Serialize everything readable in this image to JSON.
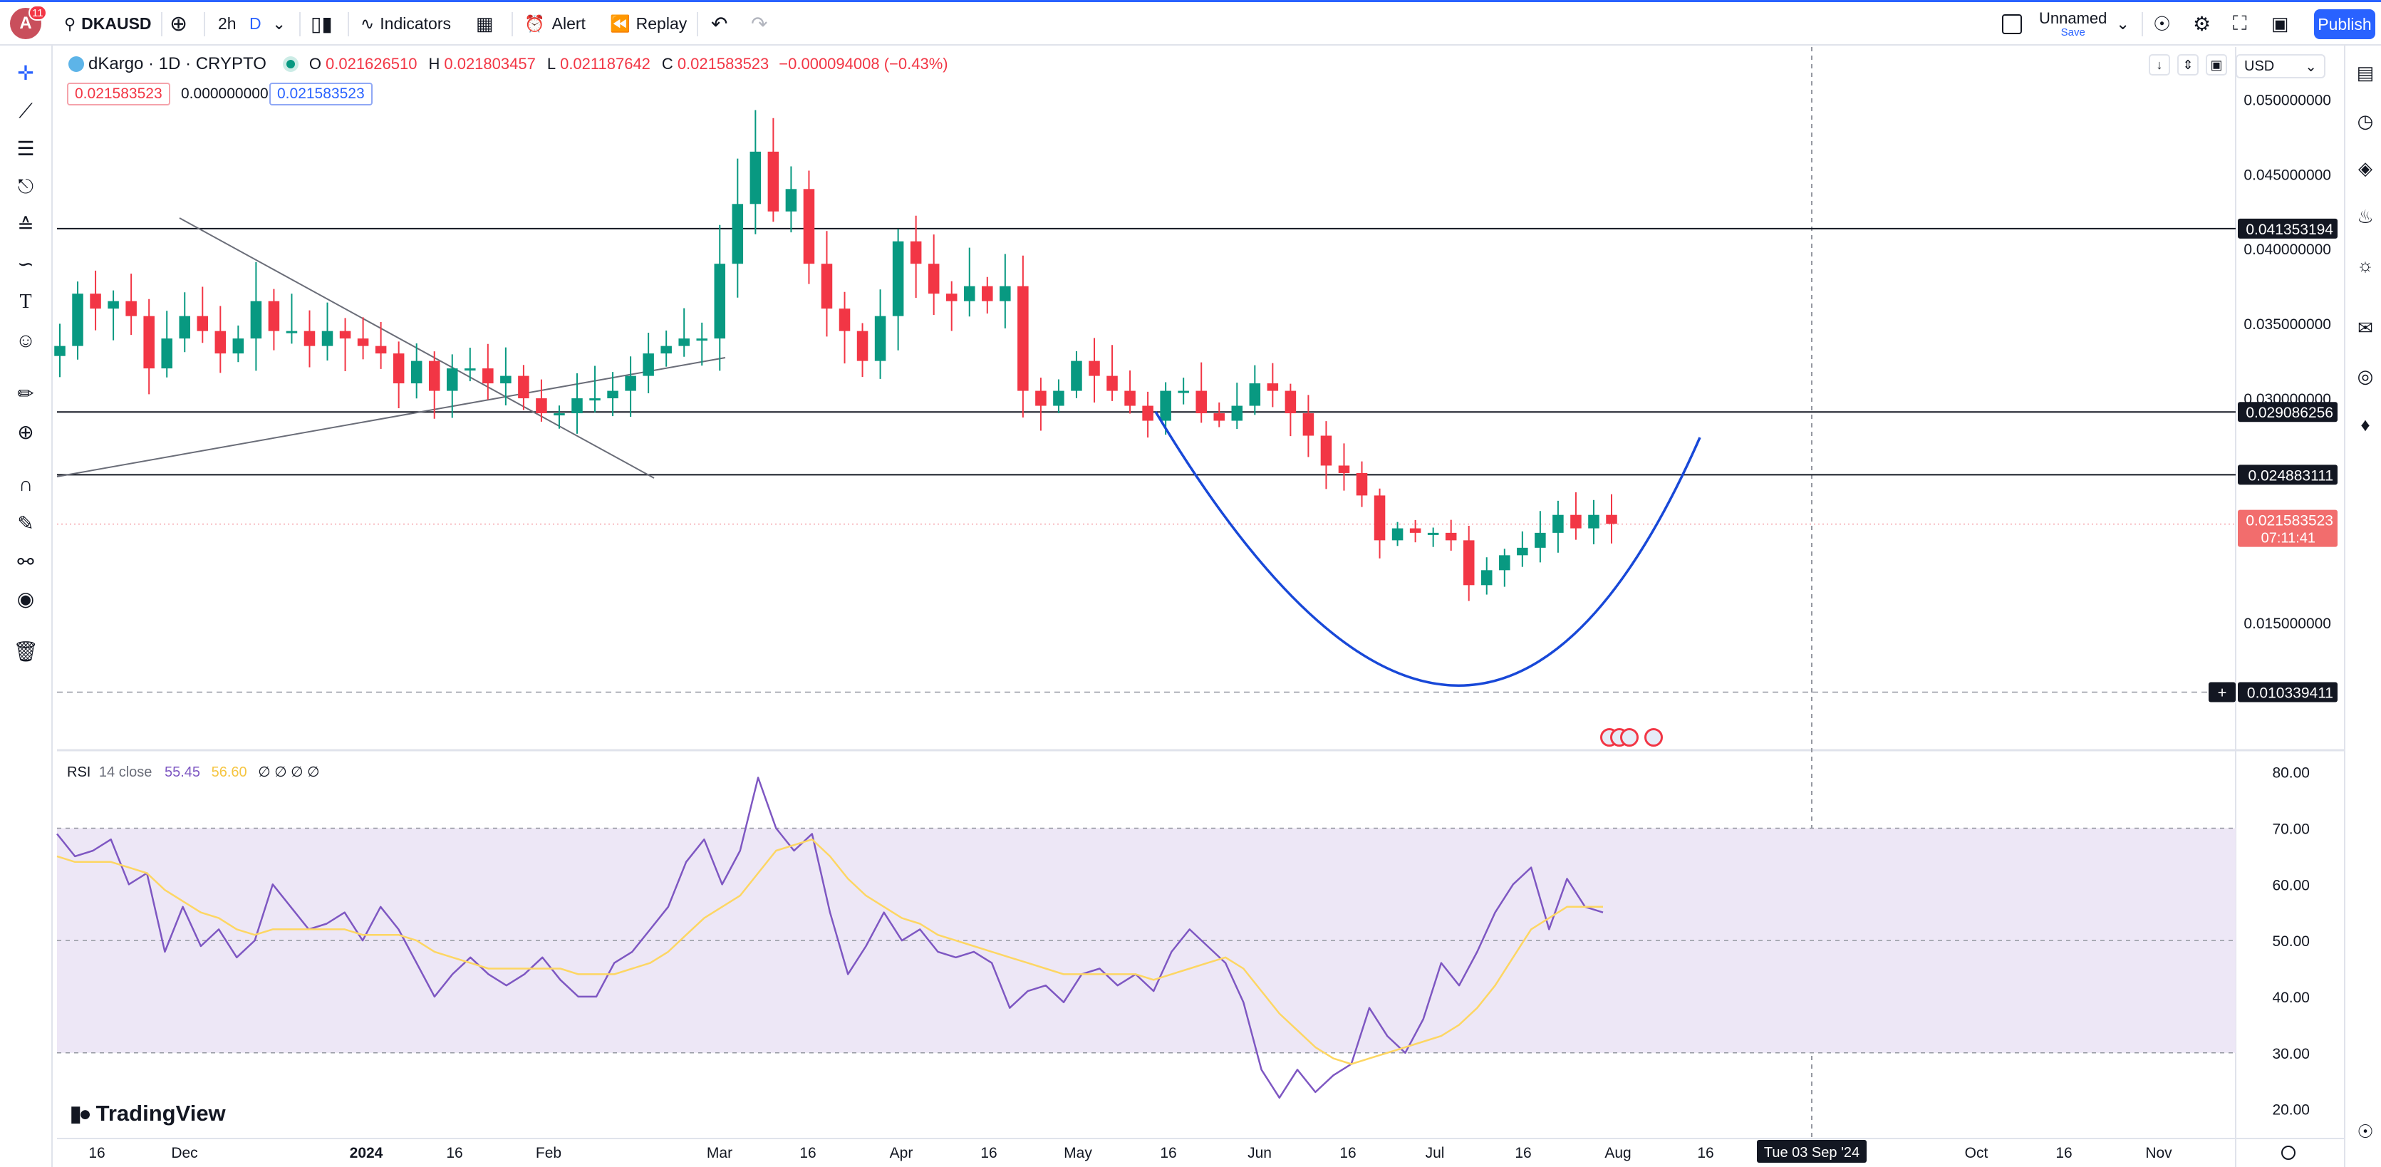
{
  "header": {
    "avatar_letter": "A",
    "notifications": "11",
    "symbol": "DKAUSD",
    "interval": "2h",
    "interval_d": "D",
    "indicators": "Indicators",
    "alert": "Alert",
    "replay": "Replay",
    "layout_name": "Unnamed",
    "layout_save": "Save",
    "publish": "Publish"
  },
  "legend": {
    "title": "dKargo · 1D · CRYPTO",
    "o_key": "O",
    "o_val": "0.021626510",
    "h_key": "H",
    "h_val": "0.021803457",
    "l_key": "L",
    "l_val": "0.021187642",
    "c_key": "C",
    "c_val": "0.021583523",
    "change": "−0.000094008 (−0.43%)",
    "bid": "0.021583523",
    "spread": "0.000000000",
    "ask": "0.021583523"
  },
  "currency": "USD",
  "rsi_legend": {
    "name": "RSI",
    "params": "14 close",
    "rsi": "55.45",
    "ma": "56.60",
    "extra": "∅ ∅ ∅ ∅"
  },
  "brand": "TradingView",
  "crosshair_date": "Tue 03 Sep '24",
  "colors": {
    "up": "#089981",
    "down": "#f23645",
    "curve": "#1848d8",
    "rsi": "#7e57c2",
    "rsi_ma": "#fdd663",
    "band": "#ede7f6",
    "accent": "#2962ff"
  },
  "chart_data": [
    {
      "type": "candlestick",
      "title": "dKargo · 1D · CRYPTO",
      "y_axis": {
        "ticks": [
          "0.050000000",
          "0.045000000",
          "0.040000000",
          "0.035000000",
          "0.030000000",
          "0.015000000"
        ],
        "tick_values": [
          0.05,
          0.045,
          0.04,
          0.035,
          0.03,
          0.015
        ],
        "range": [
          0.0066,
          0.0535
        ]
      },
      "x_axis": {
        "ticks": [
          "16",
          "Dec",
          "2024",
          "16",
          "Feb",
          "Mar",
          "16",
          "Apr",
          "16",
          "May",
          "16",
          "Jun",
          "16",
          "Jul",
          "16",
          "Aug",
          "16",
          "Oct",
          "16",
          "Nov"
        ]
      },
      "horizontal_levels": [
        {
          "label": "0.041353194",
          "value": 0.041353194
        },
        {
          "label": "0.029086256",
          "value": 0.029086256
        },
        {
          "label": "0.024883111",
          "value": 0.024883111
        },
        {
          "label": "0.010339411",
          "value": 0.010339411
        }
      ],
      "last_price": {
        "label": "0.021583523",
        "countdown": "07:11:41",
        "value": 0.021583523
      },
      "ohlc_series": [
        0.0335,
        0.037,
        0.036,
        0.0365,
        0.0355,
        0.032,
        0.034,
        0.0355,
        0.0345,
        0.033,
        0.034,
        0.0365,
        0.0345,
        0.0345,
        0.0335,
        0.0345,
        0.034,
        0.0335,
        0.033,
        0.031,
        0.0325,
        0.0305,
        0.032,
        0.032,
        0.031,
        0.0315,
        0.03,
        0.029,
        0.029,
        0.03,
        0.03,
        0.0305,
        0.0315,
        0.033,
        0.0335,
        0.034,
        0.034,
        0.039,
        0.043,
        0.0465,
        0.0425,
        0.044,
        0.039,
        0.036,
        0.0345,
        0.0325,
        0.0355,
        0.0405,
        0.039,
        0.037,
        0.0365,
        0.0375,
        0.0365,
        0.0375,
        0.0305,
        0.0295,
        0.0305,
        0.0325,
        0.0315,
        0.0305,
        0.0295,
        0.0285,
        0.0305,
        0.0305,
        0.029,
        0.0285,
        0.0295,
        0.031,
        0.0305,
        0.029,
        0.0275,
        0.0255,
        0.025,
        0.0235,
        0.0205,
        0.0213,
        0.021,
        0.021,
        0.0205,
        0.0175,
        0.0185,
        0.0195,
        0.02,
        0.021,
        0.0222,
        0.0213,
        0.0222,
        0.0216
      ],
      "curve_annotation": "parabolic arc",
      "trendlines": 2
    },
    {
      "type": "line",
      "title": "RSI 14 close",
      "y_axis": {
        "ticks": [
          "80.00",
          "70.00",
          "60.00",
          "50.00",
          "40.00",
          "30.00",
          "20.00"
        ],
        "range": [
          15,
          83
        ]
      },
      "band": [
        30,
        70
      ],
      "midline": 50,
      "series": [
        {
          "name": "RSI",
          "values": [
            69,
            65,
            66,
            68,
            60,
            62,
            48,
            56,
            49,
            52,
            47,
            50,
            60,
            56,
            52,
            53,
            55,
            50,
            56,
            52,
            46,
            40,
            44,
            47,
            44,
            42,
            44,
            47,
            43,
            40,
            40,
            46,
            48,
            52,
            56,
            64,
            68,
            60,
            66,
            79,
            70,
            66,
            69,
            55,
            44,
            49,
            55,
            50,
            52,
            48,
            47,
            48,
            46,
            38,
            41,
            42,
            39,
            44,
            45,
            42,
            44,
            41,
            48,
            52,
            49,
            46,
            39,
            27,
            22,
            27,
            23,
            26,
            28,
            38,
            33,
            30,
            36,
            46,
            42,
            48,
            55,
            60,
            63,
            52,
            61,
            56,
            55
          ]
        },
        {
          "name": "MA",
          "values": [
            65,
            64,
            64,
            64,
            63,
            62,
            59,
            57,
            55,
            54,
            52,
            51,
            52,
            52,
            52,
            52,
            52,
            51,
            51,
            51,
            50,
            48,
            47,
            46,
            45,
            45,
            45,
            45,
            45,
            44,
            44,
            44,
            45,
            46,
            48,
            51,
            54,
            56,
            58,
            62,
            66,
            67,
            68,
            65,
            61,
            58,
            56,
            54,
            53,
            51,
            50,
            49,
            48,
            47,
            46,
            45,
            44,
            44,
            44,
            44,
            44,
            43,
            44,
            45,
            46,
            47,
            45,
            41,
            37,
            34,
            31,
            29,
            28,
            29,
            30,
            31,
            32,
            33,
            35,
            38,
            42,
            47,
            52,
            54,
            56,
            56,
            56
          ]
        }
      ]
    }
  ]
}
